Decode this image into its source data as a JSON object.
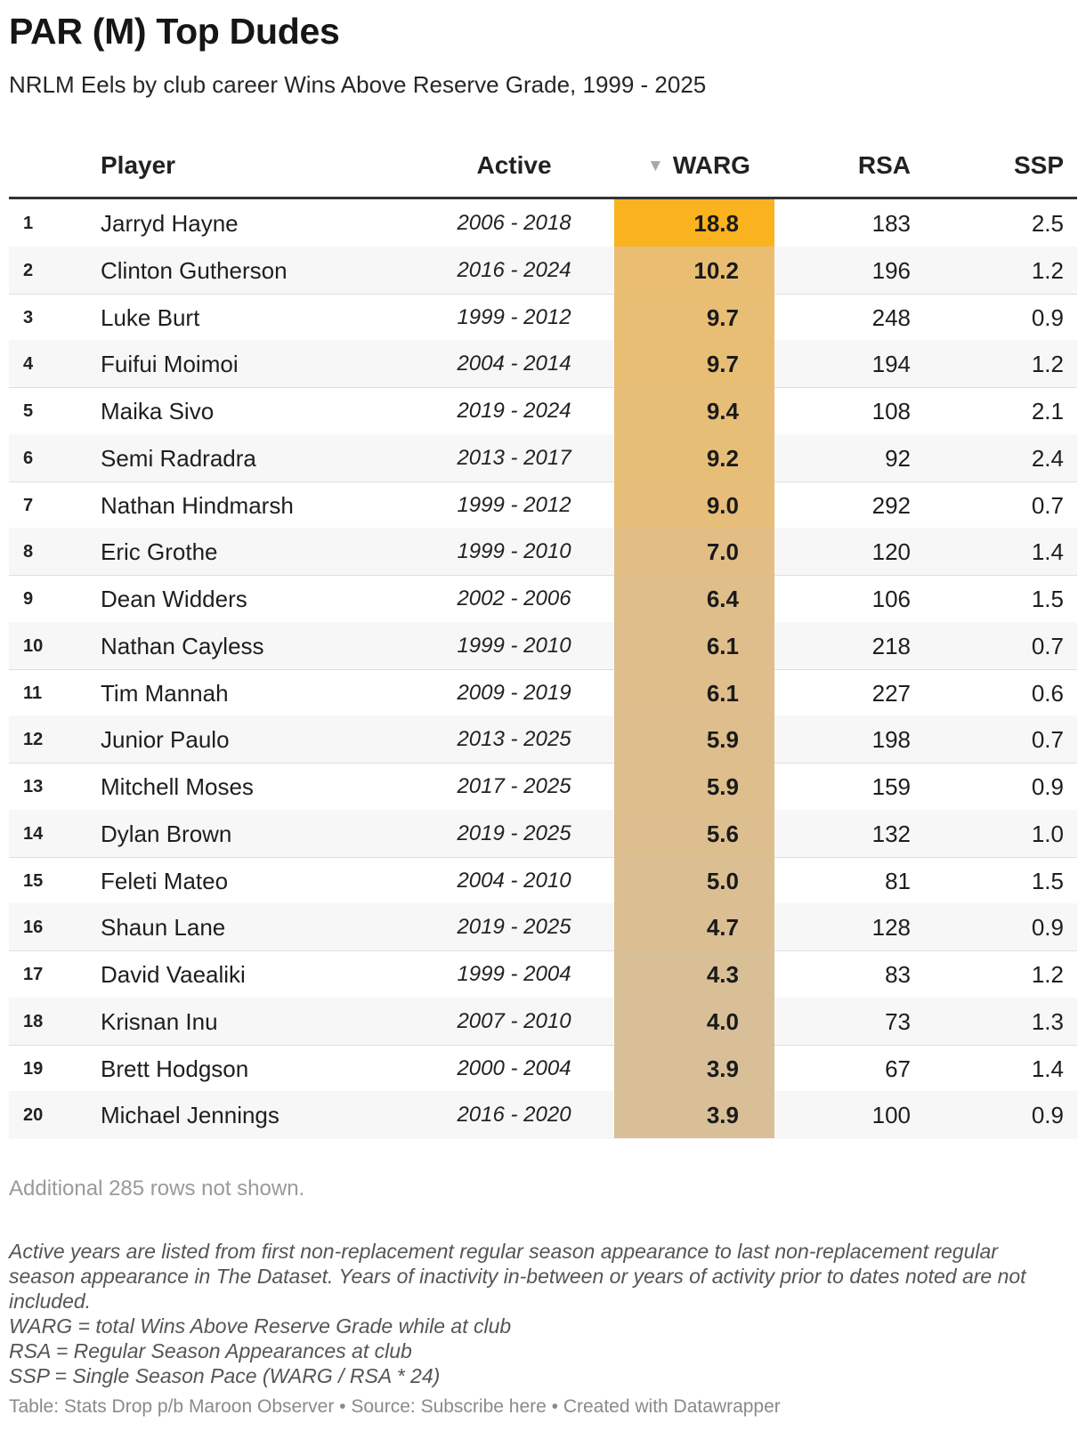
{
  "header": {
    "title": "PAR (M) Top Dudes",
    "subtitle": "NRLM Eels by club career Wins Above Reserve Grade, 1999 - 2025"
  },
  "colors": {
    "warg_top": "#fab31e",
    "warg_high": "#e9be72",
    "warg_mid": "#e2be86",
    "warg_low": "#d8bf98"
  },
  "chart_data": {
    "type": "table",
    "sort_column": "WARG",
    "sort_order": "descending",
    "columns": [
      "",
      "Player",
      "Active",
      "WARG",
      "RSA",
      "SSP"
    ],
    "rows": [
      {
        "rank": "1",
        "player": "Jarryd Hayne",
        "active": "2006 - 2018",
        "warg": "18.8",
        "rsa": "183",
        "ssp": "2.5"
      },
      {
        "rank": "2",
        "player": "Clinton Gutherson",
        "active": "2016 - 2024",
        "warg": "10.2",
        "rsa": "196",
        "ssp": "1.2"
      },
      {
        "rank": "3",
        "player": "Luke Burt",
        "active": "1999 - 2012",
        "warg": "9.7",
        "rsa": "248",
        "ssp": "0.9"
      },
      {
        "rank": "4",
        "player": "Fuifui Moimoi",
        "active": "2004 - 2014",
        "warg": "9.7",
        "rsa": "194",
        "ssp": "1.2"
      },
      {
        "rank": "5",
        "player": "Maika Sivo",
        "active": "2019 - 2024",
        "warg": "9.4",
        "rsa": "108",
        "ssp": "2.1"
      },
      {
        "rank": "6",
        "player": "Semi Radradra",
        "active": "2013 - 2017",
        "warg": "9.2",
        "rsa": "92",
        "ssp": "2.4"
      },
      {
        "rank": "7",
        "player": "Nathan Hindmarsh",
        "active": "1999 - 2012",
        "warg": "9.0",
        "rsa": "292",
        "ssp": "0.7"
      },
      {
        "rank": "8",
        "player": "Eric Grothe",
        "active": "1999 - 2010",
        "warg": "7.0",
        "rsa": "120",
        "ssp": "1.4"
      },
      {
        "rank": "9",
        "player": "Dean Widders",
        "active": "2002 - 2006",
        "warg": "6.4",
        "rsa": "106",
        "ssp": "1.5"
      },
      {
        "rank": "10",
        "player": "Nathan Cayless",
        "active": "1999 - 2010",
        "warg": "6.1",
        "rsa": "218",
        "ssp": "0.7"
      },
      {
        "rank": "11",
        "player": "Tim Mannah",
        "active": "2009 - 2019",
        "warg": "6.1",
        "rsa": "227",
        "ssp": "0.6"
      },
      {
        "rank": "12",
        "player": "Junior Paulo",
        "active": "2013 - 2025",
        "warg": "5.9",
        "rsa": "198",
        "ssp": "0.7"
      },
      {
        "rank": "13",
        "player": "Mitchell Moses",
        "active": "2017 - 2025",
        "warg": "5.9",
        "rsa": "159",
        "ssp": "0.9"
      },
      {
        "rank": "14",
        "player": "Dylan Brown",
        "active": "2019 - 2025",
        "warg": "5.6",
        "rsa": "132",
        "ssp": "1.0"
      },
      {
        "rank": "15",
        "player": "Feleti Mateo",
        "active": "2004 - 2010",
        "warg": "5.0",
        "rsa": "81",
        "ssp": "1.5"
      },
      {
        "rank": "16",
        "player": "Shaun Lane",
        "active": "2019 - 2025",
        "warg": "4.7",
        "rsa": "128",
        "ssp": "0.9"
      },
      {
        "rank": "17",
        "player": "David Vaealiki",
        "active": "1999 - 2004",
        "warg": "4.3",
        "rsa": "83",
        "ssp": "1.2"
      },
      {
        "rank": "18",
        "player": "Krisnan Inu",
        "active": "2007 - 2010",
        "warg": "4.0",
        "rsa": "73",
        "ssp": "1.3"
      },
      {
        "rank": "19",
        "player": "Brett Hodgson",
        "active": "2000 - 2004",
        "warg": "3.9",
        "rsa": "67",
        "ssp": "1.4"
      },
      {
        "rank": "20",
        "player": "Michael Jennings",
        "active": "2016 - 2020",
        "warg": "3.9",
        "rsa": "100",
        "ssp": "0.9"
      }
    ]
  },
  "table_footer": {
    "more_rows": "Additional 285 rows not shown."
  },
  "notes": [
    "Active years are listed from first non-replacement regular season appearance to last non-replacement regular season appearance in The Dataset. Years of inactivity in-between or years of activity prior to dates noted are not included.",
    "WARG = total Wins Above Reserve Grade while at club",
    "RSA = Regular Season Appearances at club",
    "SSP = Single Season Pace (WARG / RSA * 24)"
  ],
  "footer": {
    "credit": "Table: Stats Drop p/b Maroon Observer • Source: Subscribe here • Created with Datawrapper"
  }
}
